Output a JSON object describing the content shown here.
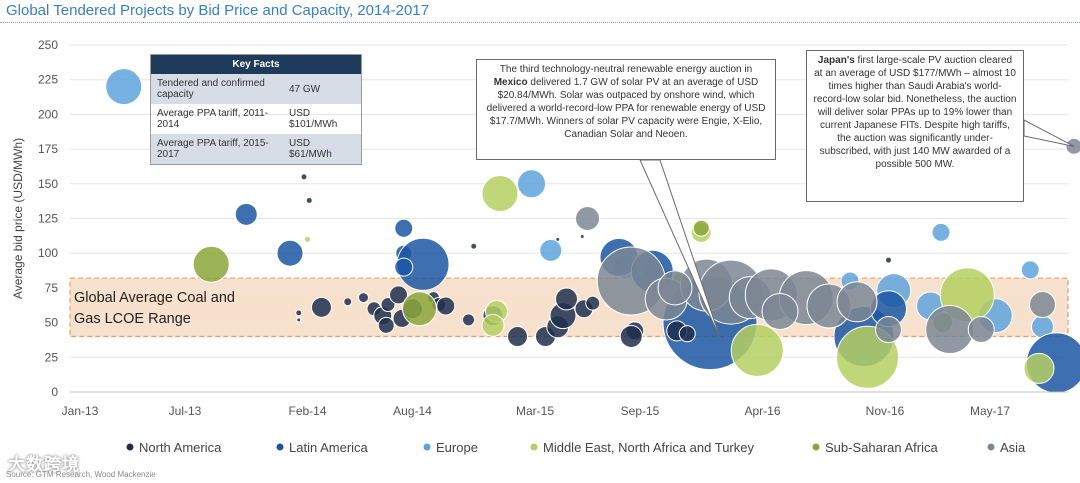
{
  "title": "Global Tendered Projects by Bid Price and Capacity, 2014-2017",
  "source": "Source: GTM Research, Wood Mackenzie",
  "watermark": "大数跨境",
  "band_label_line1": "Global Average Coal and",
  "band_label_line2": "Gas LCOE Range",
  "key_facts": {
    "header": "Key Facts",
    "rows": [
      {
        "label": "Tendered and confirmed capacity",
        "value": "47 GW"
      },
      {
        "label": "Average PPA tariff, 2011-2014",
        "value": "USD $101/MWh"
      },
      {
        "label": "Average PPA tariff, 2015-2017",
        "value": "USD $61/MWh"
      }
    ]
  },
  "callout_mexico": {
    "pre": "The third technology-neutral renewable energy auction in ",
    "bold": "Mexico",
    "post": " delivered 1.7 GW of solar PV at an average of USD $20.84/MWh. Solar was outpaced by onshore wind, which delivered a world-record-low PPA for renewable energy of USD $17.7/MWh. Winners of solar PV capacity were Engie, X-Elio, Canadian Solar and Neoen."
  },
  "callout_japan": {
    "bold": "Japan's",
    "post": " first large-scale PV auction cleared at an average of USD $177/MWh – almost 10 times higher than Saudi Arabia's world-record-low solar bid. Nonetheless, the auction will deliver solar PPAs up to 19% lower than current Japanese FITs. Despite high tariffs, the auction was significantly under-subscribed, with just 140 MW awarded of a possible 500 MW."
  },
  "colors": {
    "North America": "#1e2f4d",
    "Latin America": "#1b56a3",
    "Europe": "#5fa3dc",
    "Middle East, North Africa and Turkey": "#b4cf62",
    "Sub-Saharan Africa": "#8ca63a",
    "Asia": "#7c8794",
    "band": "#f2c8a3",
    "band_border": "#e3a070"
  },
  "chart_data": {
    "type": "scatter",
    "title": "Global Tendered Projects by Bid Price and Capacity, 2014-2017",
    "xlabel": "",
    "ylabel": "Average bid price (USD/MWh)",
    "ylim": [
      0,
      250
    ],
    "yticks": [
      0,
      25,
      50,
      75,
      100,
      125,
      150,
      175,
      200,
      225,
      250
    ],
    "x_tick_labels": [
      "Jan-13",
      "Jul-13",
      "Feb-14",
      "Aug-14",
      "Mar-15",
      "Sep-15",
      "Apr-16",
      "Nov-16",
      "May-17"
    ],
    "xlim_months": [
      0,
      56
    ],
    "x_tick_months": [
      0,
      6,
      13,
      19,
      26,
      32,
      39,
      46,
      52
    ],
    "band": {
      "low": 40,
      "high": 82
    },
    "legend": [
      "North America",
      "Latin America",
      "Europe",
      "Middle East, North Africa and Turkey",
      "Sub-Saharan Africa",
      "Asia"
    ],
    "legend_position": "bottom",
    "series": [
      {
        "name": "Europe",
        "points": [
          {
            "m": 2.5,
            "y": 220,
            "s": 18
          },
          {
            "m": 25.8,
            "y": 150,
            "s": 14
          },
          {
            "m": 26.9,
            "y": 102,
            "s": 11
          },
          {
            "m": 44.0,
            "y": 80,
            "s": 9
          },
          {
            "m": 49.2,
            "y": 115,
            "s": 9
          },
          {
            "m": 54.3,
            "y": 88,
            "s": 9
          },
          {
            "m": 46.5,
            "y": 73,
            "s": 17
          },
          {
            "m": 52.3,
            "y": 55,
            "s": 17
          },
          {
            "m": 48.6,
            "y": 62,
            "s": 14
          },
          {
            "m": 31.2,
            "y": 90,
            "s": 12
          },
          {
            "m": 32.8,
            "y": 88,
            "s": 11
          },
          {
            "m": 33.8,
            "y": 80,
            "s": 12
          },
          {
            "m": 55.0,
            "y": 47,
            "s": 11
          }
        ]
      },
      {
        "name": "Latin America",
        "points": [
          {
            "m": 9.5,
            "y": 128,
            "s": 11
          },
          {
            "m": 12.0,
            "y": 100,
            "s": 13
          },
          {
            "m": 18.5,
            "y": 118,
            "s": 9
          },
          {
            "m": 18.5,
            "y": 100,
            "s": 8
          },
          {
            "m": 19.6,
            "y": 92,
            "s": 26
          },
          {
            "m": 18.5,
            "y": 90,
            "s": 9
          },
          {
            "m": 30.8,
            "y": 97,
            "s": 19
          },
          {
            "m": 32.7,
            "y": 87,
            "s": 21
          },
          {
            "m": 36.0,
            "y": 50,
            "s": 47
          },
          {
            "m": 44.8,
            "y": 40,
            "s": 30
          },
          {
            "m": 46.2,
            "y": 60,
            "s": 18
          },
          {
            "m": 55.8,
            "y": 21,
            "s": 30
          }
        ]
      },
      {
        "name": "North America",
        "points": [
          {
            "m": 12.8,
            "y": 155,
            "s": 3
          },
          {
            "m": 13.1,
            "y": 138,
            "s": 3
          },
          {
            "m": 22.5,
            "y": 105,
            "s": 3
          },
          {
            "m": 27.3,
            "y": 110,
            "s": 2
          },
          {
            "m": 12.5,
            "y": 57,
            "s": 3
          },
          {
            "m": 12.5,
            "y": 52,
            "s": 2
          },
          {
            "m": 13.8,
            "y": 61,
            "s": 10
          },
          {
            "m": 15.3,
            "y": 65,
            "s": 4
          },
          {
            "m": 16.2,
            "y": 68,
            "s": 5
          },
          {
            "m": 16.8,
            "y": 60,
            "s": 7
          },
          {
            "m": 17.3,
            "y": 55,
            "s": 9
          },
          {
            "m": 17.6,
            "y": 63,
            "s": 7
          },
          {
            "m": 18.2,
            "y": 70,
            "s": 9
          },
          {
            "m": 18.4,
            "y": 53,
            "s": 9
          },
          {
            "m": 19.0,
            "y": 60,
            "s": 10
          },
          {
            "m": 17.5,
            "y": 48,
            "s": 8
          },
          {
            "m": 20.2,
            "y": 68,
            "s": 6
          },
          {
            "m": 20.5,
            "y": 63,
            "s": 7
          },
          {
            "m": 20.9,
            "y": 62,
            "s": 9
          },
          {
            "m": 22.2,
            "y": 52,
            "s": 6
          },
          {
            "m": 23.6,
            "y": 55,
            "s": 10
          },
          {
            "m": 25.0,
            "y": 40,
            "s": 10
          },
          {
            "m": 26.6,
            "y": 40,
            "s": 10
          },
          {
            "m": 27.3,
            "y": 47,
            "s": 11
          },
          {
            "m": 27.6,
            "y": 55,
            "s": 13
          },
          {
            "m": 27.8,
            "y": 67,
            "s": 11
          },
          {
            "m": 28.8,
            "y": 60,
            "s": 9
          },
          {
            "m": 31.7,
            "y": 44,
            "s": 9
          },
          {
            "m": 31.5,
            "y": 40,
            "s": 11
          },
          {
            "m": 34.1,
            "y": 44,
            "s": 10
          },
          {
            "m": 34.7,
            "y": 42,
            "s": 8
          },
          {
            "m": 29.3,
            "y": 64,
            "s": 7
          },
          {
            "m": 46.2,
            "y": 95,
            "s": 3
          },
          {
            "m": 28.7,
            "y": 112,
            "s": 2
          }
        ]
      },
      {
        "name": "Middle East, North Africa and Turkey",
        "points": [
          {
            "m": 14.0,
            "y": 170,
            "s": 3
          },
          {
            "m": 24.0,
            "y": 143,
            "s": 18
          },
          {
            "m": 13.0,
            "y": 110,
            "s": 3
          },
          {
            "m": 23.8,
            "y": 58,
            "s": 11
          },
          {
            "m": 23.6,
            "y": 48,
            "s": 11
          },
          {
            "m": 38.7,
            "y": 30,
            "s": 26
          },
          {
            "m": 45.0,
            "y": 25,
            "s": 31
          },
          {
            "m": 50.7,
            "y": 70,
            "s": 27
          },
          {
            "m": 54.8,
            "y": 17,
            "s": 15
          },
          {
            "m": 35.5,
            "y": 115,
            "s": 10
          }
        ]
      },
      {
        "name": "Sub-Saharan Africa",
        "points": [
          {
            "m": 7.5,
            "y": 92,
            "s": 18
          },
          {
            "m": 19.4,
            "y": 60,
            "s": 17
          },
          {
            "m": 35.5,
            "y": 118,
            "s": 8
          },
          {
            "m": 34.3,
            "y": 80,
            "s": 8
          },
          {
            "m": 49.3,
            "y": 50,
            "s": 10
          }
        ]
      },
      {
        "name": "Asia",
        "points": [
          {
            "m": 29.0,
            "y": 125,
            "s": 12
          },
          {
            "m": 31.5,
            "y": 80,
            "s": 34
          },
          {
            "m": 33.5,
            "y": 67,
            "s": 21
          },
          {
            "m": 35.8,
            "y": 77,
            "s": 26
          },
          {
            "m": 37.2,
            "y": 72,
            "s": 32
          },
          {
            "m": 38.3,
            "y": 68,
            "s": 21
          },
          {
            "m": 39.5,
            "y": 70,
            "s": 26
          },
          {
            "m": 41.5,
            "y": 68,
            "s": 27
          },
          {
            "m": 42.8,
            "y": 62,
            "s": 22
          },
          {
            "m": 44.4,
            "y": 65,
            "s": 20
          },
          {
            "m": 46.2,
            "y": 45,
            "s": 13
          },
          {
            "m": 49.7,
            "y": 45,
            "s": 24
          },
          {
            "m": 51.5,
            "y": 45,
            "s": 13
          },
          {
            "m": 55.0,
            "y": 63,
            "s": 13
          },
          {
            "m": 56.8,
            "y": 177,
            "s": 8
          },
          {
            "m": 34.0,
            "y": 75,
            "s": 17
          },
          {
            "m": 40.0,
            "y": 58,
            "s": 18
          }
        ]
      }
    ],
    "annotations": [
      {
        "text": "Mexico callout",
        "points_to": {
          "m": 36.0,
          "y": 45
        }
      },
      {
        "text": "Japan callout",
        "points_to": {
          "m": 56.8,
          "y": 177
        }
      }
    ]
  }
}
